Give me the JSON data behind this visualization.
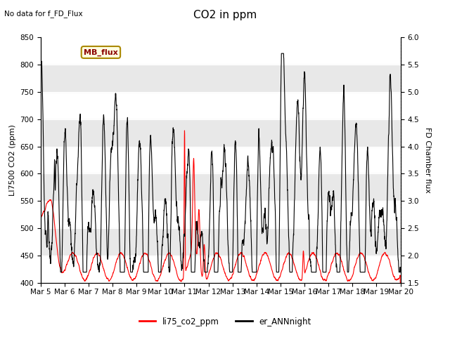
{
  "title": "CO2 in ppm",
  "ylabel_left": "LI7500 CO2 (ppm)",
  "ylabel_right": "FD Chamber flux",
  "ylim_left": [
    400,
    850
  ],
  "ylim_right": [
    1.5,
    6.0
  ],
  "no_data_text": "No data for f_FD_Flux",
  "mb_flux_label": "MB_flux",
  "legend_labels": [
    "li75_co2_ppm",
    "er_ANNnight"
  ],
  "line_colors": [
    "red",
    "black"
  ],
  "background_color": "#ffffff",
  "band_color": "#e8e8e8",
  "title_fontsize": 11,
  "label_fontsize": 8,
  "tick_fontsize": 7.5,
  "xstart": 5,
  "xend": 20,
  "n_points": 3000,
  "yticks_left": [
    400,
    450,
    500,
    550,
    600,
    650,
    700,
    750,
    800,
    850
  ],
  "yticks_right": [
    1.5,
    2.0,
    2.5,
    3.0,
    3.5,
    4.0,
    4.5,
    5.0,
    5.5,
    6.0
  ],
  "xtick_labels": [
    "Mar 5",
    "Mar 6",
    "Mar 7",
    "Mar 8",
    "Mar 9",
    "Mar 10",
    "Mar 11",
    "Mar 12",
    "Mar 13",
    "Mar 14",
    "Mar 15",
    "Mar 16",
    "Mar 17",
    "Mar 18",
    "Mar 19",
    "Mar 20"
  ]
}
